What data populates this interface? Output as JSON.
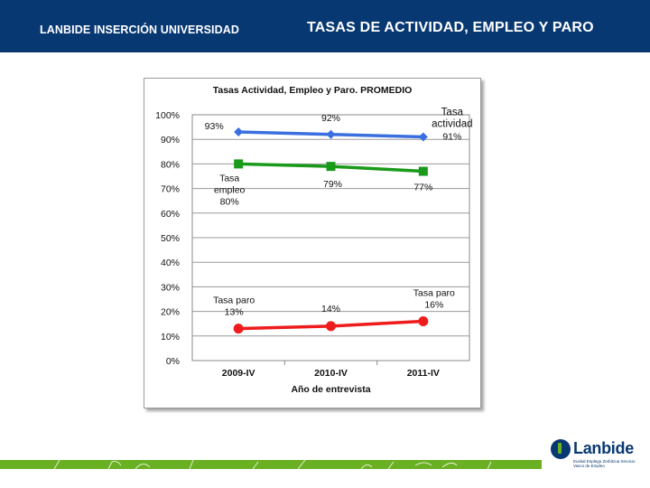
{
  "header": {
    "left_title": "LANBIDE INSERCIÓN UNIVERSIDAD",
    "right_title": "TASAS DE ACTIVIDAD, EMPLEO Y PARO"
  },
  "logo": {
    "name": "Lanbide",
    "subtitle": "Euskal Enplegu Zerbitzua Servicio Vasco de Empleo"
  },
  "chart_data": {
    "type": "line",
    "title": "Tasas Actividad, Empleo y Paro. PROMEDIO",
    "xlabel": "Año de entrevista",
    "ylabel": "",
    "categories": [
      "2009-IV",
      "2010-IV",
      "2011-IV"
    ],
    "ylim": [
      0,
      100
    ],
    "yticks": [
      "0%",
      "10%",
      "20%",
      "30%",
      "40%",
      "50%",
      "60%",
      "70%",
      "80%",
      "90%",
      "100%"
    ],
    "grid": true,
    "series": [
      {
        "name": "Tasa actividad",
        "values": [
          93,
          92,
          91
        ],
        "labels": [
          "93%",
          "92%",
          "91%"
        ],
        "color": "#3b6fe0",
        "marker": "diamond"
      },
      {
        "name": "Tasa empleo",
        "values": [
          80,
          79,
          77
        ],
        "labels": [
          "80%",
          "79%",
          "77%"
        ],
        "color": "#1a9a1a",
        "marker": "square"
      },
      {
        "name": "Tasa paro",
        "values": [
          13,
          14,
          16
        ],
        "labels": [
          "13%",
          "14%",
          "16%"
        ],
        "color": "#ee1c1c",
        "marker": "circle"
      }
    ]
  }
}
